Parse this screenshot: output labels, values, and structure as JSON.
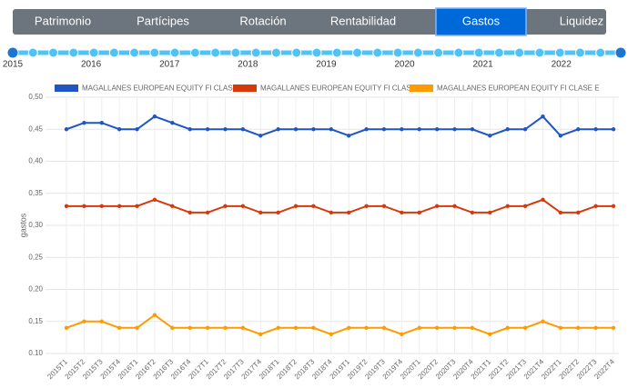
{
  "tabs": [
    "Patrimonio",
    "Partícipes",
    "Rotación",
    "Rentabilidad",
    "Gastos",
    "Liquidez"
  ],
  "active_tab": "Gastos",
  "timeline": [
    "2015",
    "2016",
    "2017",
    "2018",
    "2019",
    "2020",
    "2021",
    "2022"
  ],
  "chart_data": {
    "type": "line",
    "y_label": "gastos",
    "categories": [
      "2015T1",
      "2015T2",
      "2015T3",
      "2015T4",
      "2016T1",
      "2016T2",
      "2016T3",
      "2016T4",
      "2017T1",
      "2017T2",
      "2017T3",
      "2017T4",
      "2018T1",
      "2018T2",
      "2018T3",
      "2018T4",
      "2019T1",
      "2019T2",
      "2019T3",
      "2019T4",
      "2020T1",
      "2020T2",
      "2020T3",
      "2020T4",
      "2021T1",
      "2021T2",
      "2021T3",
      "2021T4",
      "2022T1",
      "2022T2",
      "2022T3",
      "2022T4"
    ],
    "series": [
      {
        "name": "MAGALLANES EUROPEAN EQUITY FI CLASE M",
        "color": "#1f55c4",
        "values": [
          0.45,
          0.46,
          0.46,
          0.45,
          0.45,
          0.47,
          0.46,
          0.45,
          0.45,
          0.45,
          0.45,
          0.44,
          0.45,
          0.45,
          0.45,
          0.45,
          0.44,
          0.45,
          0.45,
          0.45,
          0.45,
          0.45,
          0.45,
          0.45,
          0.44,
          0.45,
          0.45,
          0.47,
          0.44,
          0.45,
          0.45,
          0.45
        ]
      },
      {
        "name": "MAGALLANES EUROPEAN EQUITY FI CLASE P",
        "color": "#d63a0a",
        "values": [
          0.33,
          0.33,
          0.33,
          0.33,
          0.33,
          0.34,
          0.33,
          0.32,
          0.32,
          0.33,
          0.33,
          0.32,
          0.32,
          0.33,
          0.33,
          0.32,
          0.32,
          0.33,
          0.33,
          0.32,
          0.32,
          0.33,
          0.33,
          0.32,
          0.32,
          0.33,
          0.33,
          0.34,
          0.32,
          0.32,
          0.33,
          0.33
        ]
      },
      {
        "name": "MAGALLANES EUROPEAN EQUITY FI CLASE E",
        "color": "#ff9a00",
        "values": [
          0.14,
          0.15,
          0.15,
          0.14,
          0.14,
          0.16,
          0.14,
          0.14,
          0.14,
          0.14,
          0.14,
          0.13,
          0.14,
          0.14,
          0.14,
          0.13,
          0.14,
          0.14,
          0.14,
          0.13,
          0.14,
          0.14,
          0.14,
          0.14,
          0.13,
          0.14,
          0.14,
          0.15,
          0.14,
          0.14,
          0.14,
          0.14
        ]
      }
    ],
    "ylim": [
      0.1,
      0.5
    ],
    "yticks": [
      {
        "value": 0.1,
        "label": "0.10"
      },
      {
        "value": 0.15,
        "label": "0,15"
      },
      {
        "value": 0.2,
        "label": "0,20"
      },
      {
        "value": 0.25,
        "label": "0,25"
      },
      {
        "value": 0.3,
        "label": "0,30"
      },
      {
        "value": 0.35,
        "label": "0,35"
      },
      {
        "value": 0.4,
        "label": "0,40"
      },
      {
        "value": 0.45,
        "label": "0,45"
      },
      {
        "value": 0.5,
        "label": "0,50"
      }
    ],
    "grid": true,
    "legend": "top"
  }
}
